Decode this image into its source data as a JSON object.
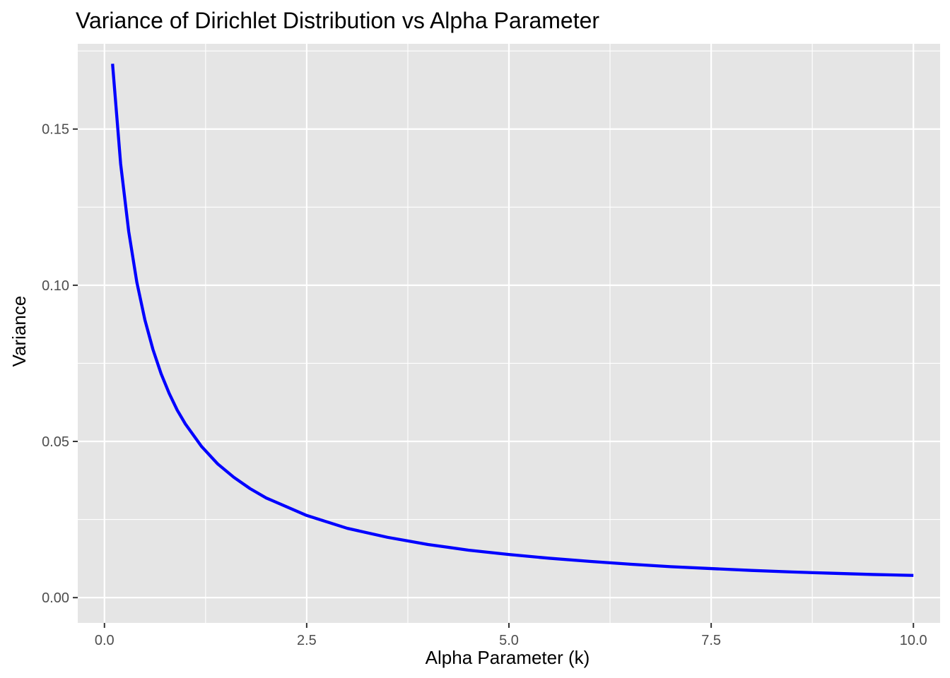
{
  "chart_data": {
    "type": "line",
    "title": "Variance of Dirichlet Distribution vs Alpha Parameter",
    "xlabel": "Alpha Parameter (k)",
    "ylabel": "Variance",
    "xlim": [
      -0.33,
      10.33
    ],
    "ylim": [
      -0.0081,
      0.1773
    ],
    "x_ticks": [
      0,
      2.5,
      5,
      7.5,
      10
    ],
    "x_tick_labels": [
      "0.0",
      "2.5",
      "5.0",
      "7.5",
      "10.0"
    ],
    "y_ticks": [
      0,
      0.05,
      0.1,
      0.15
    ],
    "y_tick_labels": [
      "0.00",
      "0.05",
      "0.10",
      "0.15"
    ],
    "grid": true,
    "panel_background": "#e5e5e5",
    "grid_color": "#ffffff",
    "series": [
      {
        "color": "#0000ff",
        "x": [
          0.1,
          0.2,
          0.3,
          0.4,
          0.5,
          0.6,
          0.7,
          0.8,
          0.9,
          1.0,
          1.2,
          1.4,
          1.6,
          1.8,
          2.0,
          2.5,
          3.0,
          3.5,
          4.0,
          4.5,
          5.0,
          5.5,
          6.0,
          6.5,
          7.0,
          7.5,
          8.0,
          8.5,
          9.0,
          9.5,
          10.0
        ],
        "y": [
          0.1709,
          0.1389,
          0.1172,
          0.101,
          0.0889,
          0.0794,
          0.0717,
          0.0654,
          0.06,
          0.0556,
          0.0484,
          0.0428,
          0.0385,
          0.0349,
          0.0319,
          0.0263,
          0.0222,
          0.0193,
          0.017,
          0.0152,
          0.0138,
          0.0126,
          0.0116,
          0.0107,
          0.0099,
          0.0093,
          0.0087,
          0.0082,
          0.0078,
          0.0074,
          0.0071
        ]
      }
    ]
  }
}
